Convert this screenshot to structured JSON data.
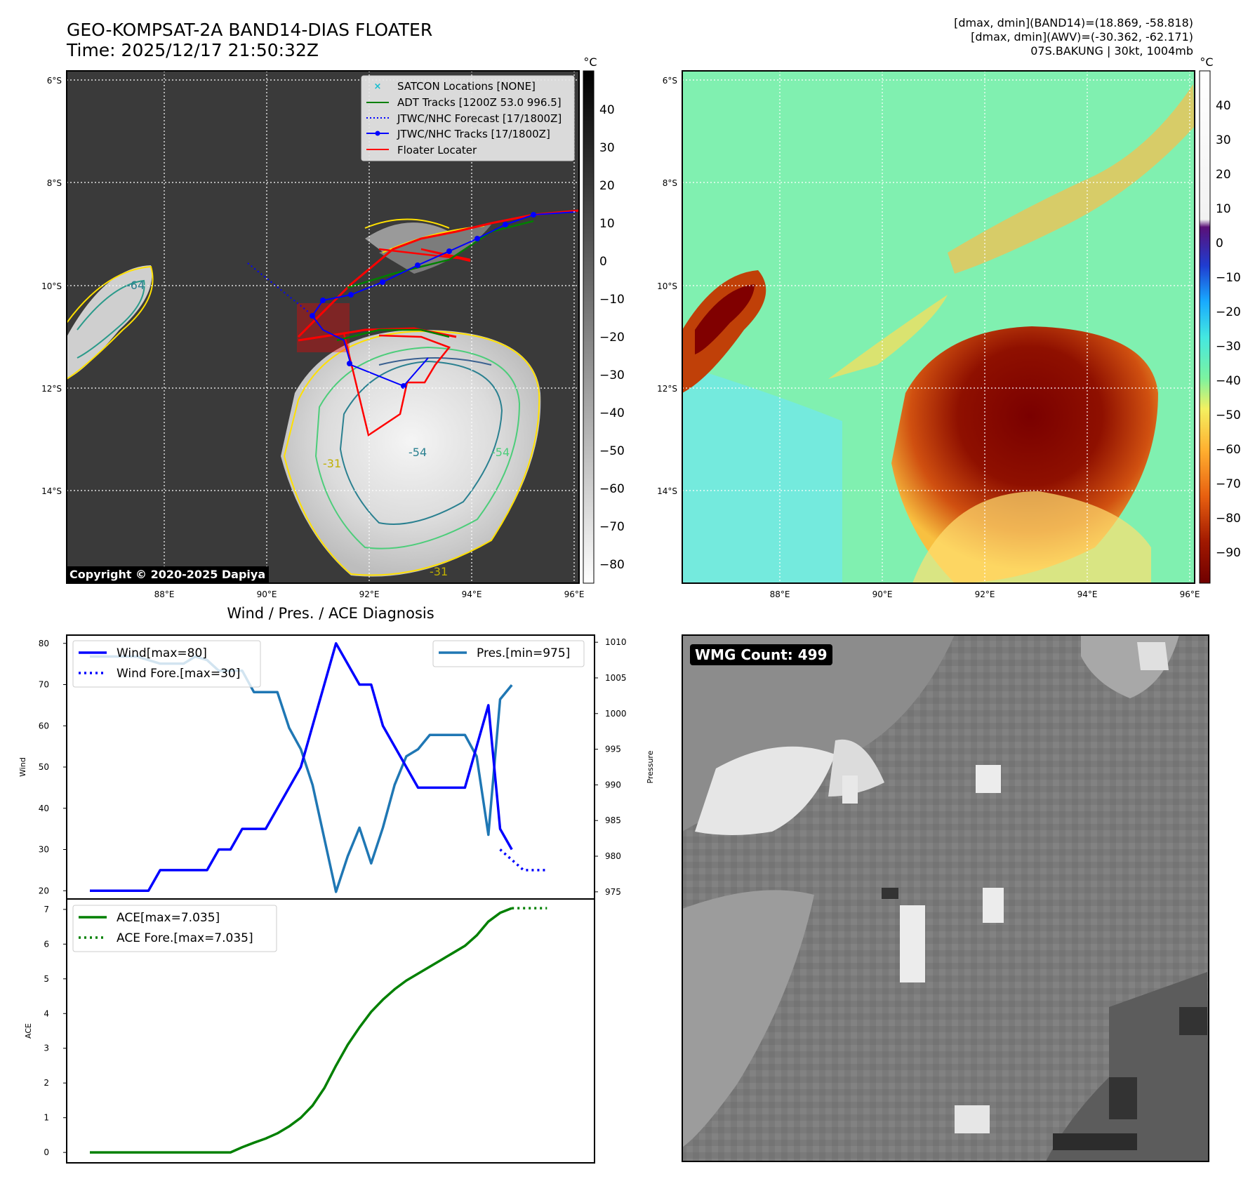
{
  "header": {
    "title_line1": "GEO-KOMPSAT-2A BAND14-DIAS FLOATER",
    "title_line2": "Time: 2025/12/17 21:50:32Z",
    "info_line1": "[dmax, dmin](BAND14)=(18.869, -58.818)",
    "info_line2": "[dmax, dmin](AWV)=(-30.362, -62.171)",
    "info_line3": "07S.BAKUNG | 30kt, 1004mb"
  },
  "maps": {
    "lat_labels": [
      "6°S",
      "8°S",
      "10°S",
      "12°S",
      "14°S"
    ],
    "lon_labels": [
      "88°E",
      "90°E",
      "92°E",
      "94°E",
      "96°E"
    ],
    "copyright": "Copyright © 2020-2025 Dapiya",
    "contour_labels": [
      "-64",
      "-31",
      "-31",
      "-54",
      "-54"
    ],
    "colorbar_unit": "°C",
    "left_colorbar_ticks": [
      "40",
      "30",
      "20",
      "10",
      "0",
      "−10",
      "−20",
      "−30",
      "−40",
      "−50",
      "−60",
      "−70",
      "−80"
    ],
    "right_colorbar_ticks": [
      "40",
      "30",
      "20",
      "10",
      "0",
      "−10",
      "−20",
      "−30",
      "−40",
      "−50",
      "−60",
      "−70",
      "−80",
      "−90"
    ],
    "legend": [
      {
        "label": "SATCON Locations [NONE]",
        "color": "#17becf",
        "style": "x-marker"
      },
      {
        "label": "ADT Tracks [1200Z 53.0 996.5]",
        "color": "#008000",
        "style": "solid"
      },
      {
        "label": "JTWC/NHC Forecast [17/1800Z]",
        "color": "#0000ff",
        "style": "dotted"
      },
      {
        "label": "JTWC/NHC Tracks [17/1800Z]",
        "color": "#0000ff",
        "style": "solid-dot"
      },
      {
        "label": "Floater Locater",
        "color": "#ff0000",
        "style": "solid"
      }
    ]
  },
  "wmg": {
    "badge": "WMG Count: 499"
  },
  "chart_data": [
    {
      "type": "line",
      "title": "Wind / Pres. / ACE Diagnosis",
      "ylabel": "Wind",
      "ylabel_right": "Pressure",
      "ylim": [
        18,
        82
      ],
      "ylim_right": [
        974,
        1011
      ],
      "y_ticks": [
        20,
        30,
        40,
        50,
        60,
        70,
        80
      ],
      "y_ticks_right": [
        975,
        980,
        985,
        990,
        995,
        1000,
        1005,
        1010
      ],
      "series": [
        {
          "name": "Wind[max=80]",
          "axis": "left",
          "color": "#0000ff",
          "style": "solid",
          "x": [
            0,
            1,
            2,
            3,
            4,
            5,
            6,
            7,
            8,
            9,
            10,
            11,
            12,
            13,
            14,
            15,
            16,
            17,
            18,
            19,
            20,
            21,
            22,
            23,
            24,
            25,
            26,
            27,
            28,
            29,
            30,
            31,
            32,
            33,
            34,
            35,
            36,
            37,
            38
          ],
          "values": [
            20,
            20,
            20,
            20,
            20,
            20,
            25,
            25,
            25,
            25,
            25,
            30,
            30,
            35,
            35,
            35,
            40,
            45,
            50,
            60,
            70,
            80,
            75,
            70,
            70,
            60,
            55,
            50,
            45,
            45,
            45,
            45,
            45,
            55,
            65,
            35,
            30,
            null,
            null
          ]
        },
        {
          "name": "Wind Fore.[max=30]",
          "axis": "left",
          "color": "#0000ff",
          "style": "dotted",
          "x": [
            35,
            36,
            37,
            38,
            39
          ],
          "values": [
            30,
            27.5,
            25,
            25,
            25
          ]
        },
        {
          "name": "Pres.[min=975]",
          "axis": "right",
          "color": "#1f77b4",
          "style": "solid",
          "x": [
            0,
            1,
            2,
            3,
            4,
            5,
            6,
            7,
            8,
            9,
            10,
            11,
            12,
            13,
            14,
            15,
            16,
            17,
            18,
            19,
            20,
            21,
            22,
            23,
            24,
            25,
            26,
            27,
            28,
            29,
            30,
            31,
            32,
            33,
            34,
            35,
            36
          ],
          "values": [
            1008,
            1008,
            1008,
            1008,
            1008,
            1007.5,
            1007,
            1007,
            1007,
            1008,
            1007.5,
            1006,
            1006,
            1006,
            1003,
            1003,
            1003,
            998,
            995,
            990,
            982.5,
            975,
            980,
            984,
            979,
            984,
            990,
            994,
            995,
            997,
            997,
            997,
            997,
            994,
            983,
            1002,
            1004
          ]
        }
      ]
    },
    {
      "type": "line",
      "ylabel": "ACE",
      "ylim": [
        -0.3,
        7.3
      ],
      "y_ticks": [
        0,
        1,
        2,
        3,
        4,
        5,
        6,
        7
      ],
      "series": [
        {
          "name": "ACE[max=7.035]",
          "color": "#008000",
          "style": "solid",
          "x": [
            0,
            1,
            2,
            3,
            4,
            5,
            6,
            7,
            8,
            9,
            10,
            11,
            12,
            13,
            14,
            15,
            16,
            17,
            18,
            19,
            20,
            21,
            22,
            23,
            24,
            25,
            26,
            27,
            28,
            29,
            30,
            31,
            32,
            33,
            34,
            35,
            36
          ],
          "values": [
            0,
            0,
            0,
            0,
            0,
            0,
            0,
            0,
            0,
            0,
            0,
            0,
            0,
            0.15,
            0.28,
            0.4,
            0.55,
            0.75,
            1.0,
            1.35,
            1.85,
            2.5,
            3.1,
            3.6,
            4.05,
            4.4,
            4.7,
            4.95,
            5.15,
            5.35,
            5.55,
            5.75,
            5.95,
            6.25,
            6.65,
            6.9,
            7.035
          ]
        },
        {
          "name": "ACE Fore.[max=7.035]",
          "color": "#008000",
          "style": "dotted",
          "x": [
            36,
            37,
            38,
            39
          ],
          "values": [
            7.035,
            7.035,
            7.035,
            7.035
          ]
        }
      ]
    }
  ]
}
